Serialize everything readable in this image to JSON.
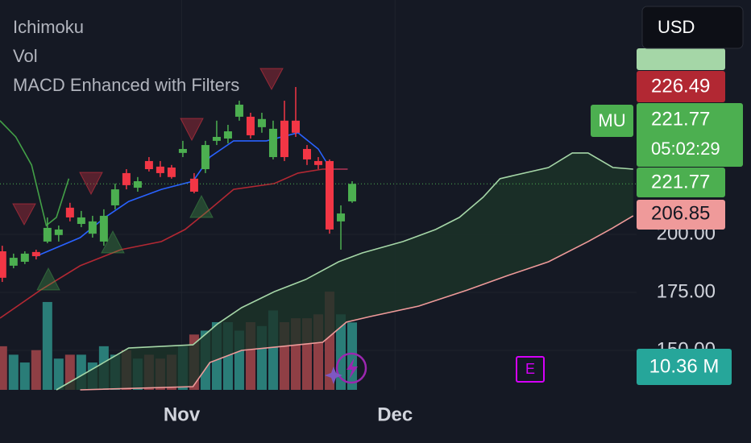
{
  "header": {
    "indicators": [
      "Ichimoku",
      "Vol",
      "MACD Enhanced with Filters"
    ],
    "currency": "USD"
  },
  "chart_data": {
    "type": "candlestick",
    "symbol": "MU",
    "countdown": "05:02:29",
    "xlim": [
      -0.2,
      56.2
    ],
    "xticks": [
      {
        "value": 15.9,
        "label": "Nov"
      },
      {
        "value": 34.8,
        "label": "Dec"
      }
    ],
    "ylim": [
      133,
      301
    ],
    "yticks": [
      {
        "value": 150,
        "label": "150.00"
      },
      {
        "value": 175,
        "label": "175.00"
      },
      {
        "value": 200,
        "label": "200.00"
      }
    ],
    "up_color": "#4caf50",
    "down_color": "#f23645",
    "open": [
      192.7,
      186.5,
      188.2,
      192.4,
      196.9,
      199.7,
      211.5,
      204.5,
      200.3,
      196.9,
      212.5,
      226.4,
      220.1,
      231.6,
      229.2,
      228.8,
      235.1,
      224.0,
      228.1,
      240.3,
      241.3,
      250.7,
      250.7,
      246.2,
      233.3,
      249.0,
      249.0,
      236.8,
      231.6,
      231.6,
      205.6,
      214.2
    ],
    "high": [
      195.1,
      191.7,
      192.7,
      193.4,
      207.3,
      203.8,
      213.6,
      210.1,
      208.0,
      210.8,
      221.9,
      228.1,
      224.7,
      233.3,
      231.6,
      229.9,
      240.3,
      226.4,
      240.3,
      249.0,
      247.2,
      257.6,
      252.4,
      252.4,
      249.0,
      257.6,
      263.5,
      238.5,
      233.3,
      232.3,
      212.5,
      222.9
    ],
    "low": [
      179.5,
      185.4,
      187.2,
      189.2,
      196.2,
      196.9,
      205.6,
      203.1,
      198.6,
      195.1,
      210.8,
      219.4,
      218.4,
      227.1,
      224.7,
      224.0,
      233.3,
      217.7,
      226.4,
      238.5,
      239.2,
      249.0,
      241.3,
      243.8,
      232.3,
      231.6,
      242.0,
      229.9,
      228.1,
      200.3,
      193.4,
      213.6
    ],
    "close": [
      181.3,
      189.9,
      191.7,
      190.6,
      202.8,
      202.1,
      207.3,
      207.3,
      205.6,
      208.0,
      219.4,
      221.2,
      222.9,
      228.1,
      226.4,
      224.7,
      236.8,
      218.4,
      238.5,
      242.0,
      244.4,
      255.9,
      242.7,
      249.7,
      245.5,
      233.3,
      243.8,
      232.3,
      229.9,
      202.1,
      209.0,
      221.77
    ],
    "volume": {
      "values": [
        6.7,
        5.4,
        4.2,
        6.1,
        13.5,
        4.8,
        5.4,
        5.4,
        4.2,
        6.7,
        5.4,
        6.1,
        4.8,
        5.4,
        4.8,
        5.4,
        6.7,
        8.5,
        9.1,
        10.4,
        10.4,
        9.1,
        10.4,
        9.8,
        12.2,
        10.4,
        11.0,
        11.0,
        11.6,
        15.1,
        11.6,
        10.36
      ],
      "up_color": "#2a7d78",
      "down_color": "#8f3f45",
      "label_color": "#26a69a",
      "last_label": "10.36 M"
    },
    "lines": [
      {
        "color": "#2962ff",
        "x": [
          3.0,
          6.9,
          9.1,
          11.2,
          14.1,
          16.9,
          18.4,
          20.5,
          23.4,
          26.2,
          28.0,
          29.1,
          30.6
        ],
        "values": [
          190.6,
          198.6,
          207.3,
          214.2,
          219.4,
          222.9,
          233.3,
          240.3,
          240.3,
          243.8,
          236.8,
          228.1,
          228.1
        ]
      },
      {
        "color": "#b22833",
        "x": [
          -0.2,
          3.4,
          6.9,
          10.5,
          14.1,
          16.2,
          18.4,
          20.5,
          24.1,
          26.2,
          28.4,
          30.6
        ],
        "values": [
          163.9,
          176.0,
          186.5,
          193.4,
          196.9,
          202.1,
          210.8,
          219.4,
          221.9,
          226.4,
          228.1,
          228.1
        ]
      },
      {
        "color": "#43a047",
        "x": [
          -0.2,
          1.2,
          2.6,
          3.9,
          4.8,
          5.9
        ],
        "values": [
          249.0,
          242.0,
          229.9,
          203.8,
          207.3,
          224.0
        ]
      },
      {
        "color": "#a5d6a7",
        "x": [
          4.8,
          8.4,
          11.2,
          16.9,
          19.1,
          21.2,
          24.1,
          26.9,
          29.8,
          31.9,
          35.5,
          38.4,
          40.5,
          42.6,
          44.1,
          48.4,
          50.5,
          51.9,
          54.1,
          55.9
        ],
        "values": [
          133.0,
          143.1,
          151.0,
          152.4,
          161.5,
          168.4,
          175.3,
          180.6,
          188.2,
          192.0,
          196.9,
          202.1,
          207.3,
          216.0,
          224.0,
          228.8,
          235.1,
          235.1,
          228.8,
          228.1
        ]
      },
      {
        "color": "#ef9a9a",
        "x": [
          6.9,
          16.9,
          18.4,
          21.2,
          24.8,
          28.4,
          30.5,
          32.6,
          36.9,
          41.2,
          44.8,
          48.4,
          51.9,
          54.1,
          55.9
        ],
        "values": [
          133.0,
          134.4,
          144.8,
          150.0,
          151.7,
          153.5,
          162.2,
          164.6,
          169.1,
          176.0,
          182.3,
          188.2,
          196.9,
          202.8,
          208.0
        ]
      }
    ],
    "cloud_color": "#1c3328",
    "price_labels": [
      {
        "value": 226.49,
        "color": "#b22833",
        "text_color": "#ffffff"
      },
      {
        "value": 221.77,
        "color": "#4caf50",
        "text_color": "#ffffff"
      },
      {
        "value": 221.77,
        "color": "#4caf50",
        "text_color": "#ffffff"
      },
      {
        "value": 206.85,
        "color": "#ef9a9a",
        "text_color": "#131722"
      }
    ]
  }
}
